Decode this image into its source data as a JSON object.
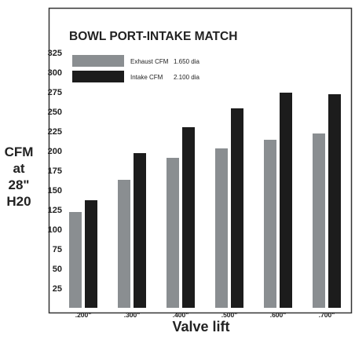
{
  "chart_data": {
    "type": "bar",
    "title": "BOWL PORT-INTAKE MATCH",
    "ylabel_lines": [
      "CFM",
      "at",
      "28\"",
      "H20"
    ],
    "xlabel": "Valve lift",
    "categories": [
      ".200\"",
      ".300\"",
      ".400\"",
      ".500\"",
      ".600\"",
      ".700\""
    ],
    "yticks": [
      "25",
      "50",
      "75",
      "100",
      "125",
      "150",
      "175",
      "200",
      "225",
      "250",
      "275",
      "300",
      "325"
    ],
    "ylim": [
      0,
      340
    ],
    "grid": false,
    "legend_position": "top-left",
    "series": [
      {
        "name": "Exhaust CFM",
        "dia": "1.650 dia",
        "color": "#8a8e91",
        "values": [
          122,
          163,
          191,
          203,
          214,
          222
        ]
      },
      {
        "name": "Intake CFM",
        "dia": "2.100 dia",
        "color": "#1c1c1c",
        "values": [
          137,
          197,
          230,
          254,
          274,
          272
        ]
      }
    ]
  }
}
